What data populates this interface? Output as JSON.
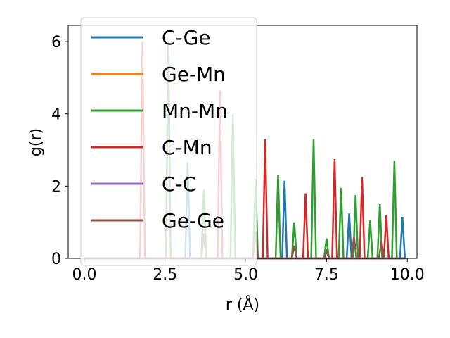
{
  "chart_data": {
    "type": "line",
    "xlabel": "r (Å)",
    "ylabel": "g(r)",
    "xlim": [
      -0.5,
      10.3
    ],
    "ylim": [
      0,
      6.45
    ],
    "xticks": [
      0.0,
      2.5,
      5.0,
      7.5,
      10.0
    ],
    "xtick_labels": [
      "0.0",
      "2.5",
      "5.0",
      "7.5",
      "10.0"
    ],
    "yticks": [
      0,
      2,
      4,
      6
    ],
    "ytick_labels": [
      "0",
      "2",
      "4",
      "6"
    ],
    "grid": false,
    "legend_position": "upper left",
    "series": [
      {
        "name": "C-Ge",
        "color": "#1f77b4",
        "peaks": [
          [
            3.2,
            2.65
          ],
          [
            6.2,
            2.15
          ],
          [
            8.2,
            1.25
          ],
          [
            9.85,
            1.15
          ]
        ]
      },
      {
        "name": "Ge-Mn",
        "color": "#ff7f0e",
        "peaks": []
      },
      {
        "name": "Mn-Mn",
        "color": "#2ca02c",
        "peaks": [
          [
            2.6,
            5.9
          ],
          [
            3.7,
            1.9
          ],
          [
            4.6,
            4.0
          ],
          [
            5.3,
            2.2
          ],
          [
            6.0,
            2.3
          ],
          [
            6.5,
            1.0
          ],
          [
            7.1,
            3.3
          ],
          [
            7.5,
            0.55
          ],
          [
            7.95,
            1.95
          ],
          [
            8.4,
            1.75
          ],
          [
            8.85,
            1.05
          ],
          [
            9.15,
            1.5
          ],
          [
            9.6,
            2.7
          ]
        ]
      },
      {
        "name": "C-Mn",
        "color": "#d62728",
        "peaks": [
          [
            1.8,
            6.0
          ],
          [
            4.2,
            4.65
          ],
          [
            5.6,
            3.3
          ],
          [
            6.85,
            1.8
          ],
          [
            7.75,
            2.75
          ],
          [
            8.6,
            2.25
          ],
          [
            9.35,
            1.2
          ]
        ]
      },
      {
        "name": "C-C",
        "color": "#9467bd",
        "peaks": []
      },
      {
        "name": "Ge-Ge",
        "color": "#8c564b",
        "peaks": [
          [
            3.7,
            0.7
          ],
          [
            5.3,
            0.75
          ],
          [
            6.5,
            0.35
          ],
          [
            7.5,
            0.2
          ],
          [
            8.35,
            0.6
          ],
          [
            9.2,
            0.5
          ]
        ]
      }
    ]
  }
}
